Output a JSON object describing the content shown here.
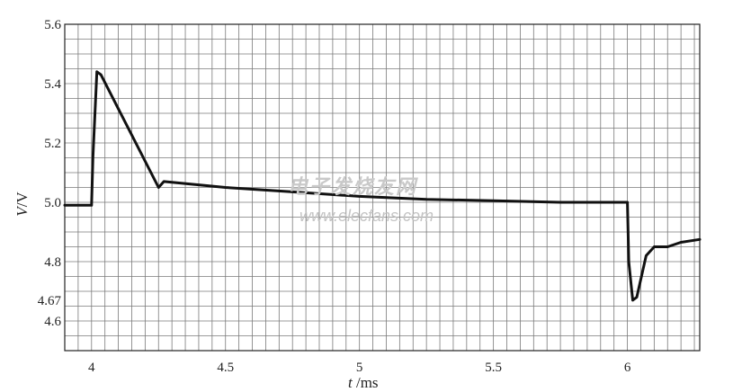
{
  "chart_data": {
    "type": "line",
    "title": "",
    "xlabel_var": "t",
    "xlabel_unit": " /ms",
    "ylabel_var": "V",
    "ylabel_unit": "/V",
    "xlim": [
      3.9,
      6.27
    ],
    "ylim": [
      4.5,
      5.6
    ],
    "x_ticks": [
      {
        "value": 4,
        "label": "4"
      },
      {
        "value": 4.5,
        "label": "4.5"
      },
      {
        "value": 5,
        "label": "5"
      },
      {
        "value": 5.5,
        "label": "5.5"
      },
      {
        "value": 6,
        "label": "6"
      }
    ],
    "y_ticks": [
      {
        "value": 5.6,
        "label": "5.6"
      },
      {
        "value": 5.4,
        "label": "5.4"
      },
      {
        "value": 5.2,
        "label": "5.2"
      },
      {
        "value": 5.0,
        "label": "5.0"
      },
      {
        "value": 4.8,
        "label": "4.8"
      },
      {
        "value": 4.67,
        "label": "4.67"
      },
      {
        "value": 4.6,
        "label": "4.6"
      }
    ],
    "grid": true,
    "series": [
      {
        "color": "#111111",
        "x": [
          3.9,
          4.0,
          4.005,
          4.02,
          4.035,
          4.25,
          4.27,
          4.5,
          4.75,
          5.0,
          5.25,
          5.5,
          5.75,
          6.0,
          6.005,
          6.02,
          6.035,
          6.07,
          6.1,
          6.15,
          6.2,
          6.27
        ],
        "y": [
          4.99,
          4.99,
          5.15,
          5.44,
          5.43,
          5.05,
          5.07,
          5.05,
          5.035,
          5.02,
          5.01,
          5.005,
          5.0,
          5.0,
          4.8,
          4.67,
          4.68,
          4.82,
          4.85,
          4.85,
          4.865,
          4.875
        ]
      }
    ]
  },
  "watermark": {
    "line1": "电子发烧友网",
    "line2": "www.elecfans.com"
  }
}
